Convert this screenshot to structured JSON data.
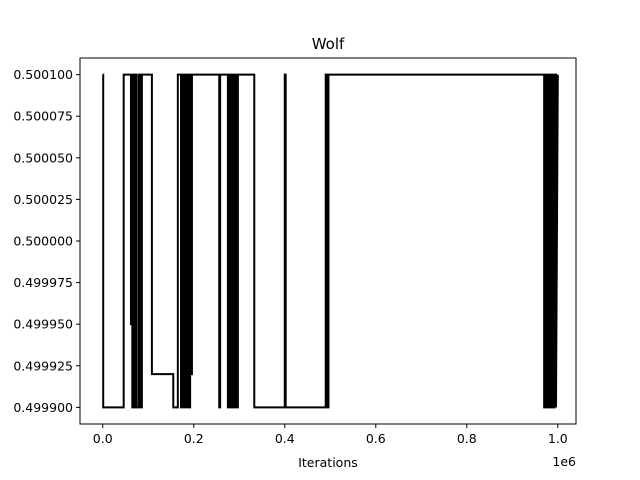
{
  "chart_data": {
    "type": "line",
    "title": "Wolf",
    "xlabel": "Iterations",
    "ylabel": "",
    "x_offset_label": "1e6",
    "xlim": [
      -0.05,
      1.04
    ],
    "ylim": [
      0.49989,
      0.50011
    ],
    "x_ticks": [
      0.0,
      0.2,
      0.4,
      0.6,
      0.8,
      1.0
    ],
    "x_tick_labels": [
      "0.0",
      "0.2",
      "0.4",
      "0.6",
      "0.8",
      "1.0"
    ],
    "y_ticks": [
      0.4999,
      0.499925,
      0.49995,
      0.499975,
      0.5,
      0.500025,
      0.50005,
      0.500075,
      0.5001
    ],
    "y_tick_labels": [
      "0.499900",
      "0.499925",
      "0.499950",
      "0.499975",
      "0.500000",
      "0.500025",
      "0.500050",
      "0.500075",
      "0.500100"
    ],
    "grid": false,
    "line_color": "#000000",
    "series": [
      {
        "x": [
          0.0,
          0.001,
          0.001,
          0.046,
          0.046,
          0.048,
          0.048,
          0.062,
          0.062,
          0.064,
          0.064,
          0.065,
          0.065,
          0.067,
          0.067,
          0.069,
          0.069,
          0.071,
          0.071,
          0.074,
          0.074,
          0.079,
          0.079,
          0.083,
          0.083,
          0.086,
          0.086,
          0.088,
          0.088,
          0.108,
          0.108,
          0.155,
          0.155,
          0.165,
          0.165,
          0.172,
          0.172,
          0.176,
          0.176,
          0.178,
          0.178,
          0.18,
          0.18,
          0.182,
          0.182,
          0.184,
          0.184,
          0.186,
          0.186,
          0.188,
          0.188,
          0.19,
          0.19,
          0.192,
          0.192,
          0.194,
          0.194,
          0.196,
          0.196,
          0.256,
          0.256,
          0.258,
          0.258,
          0.275,
          0.275,
          0.278,
          0.278,
          0.282,
          0.282,
          0.285,
          0.285,
          0.288,
          0.288,
          0.291,
          0.291,
          0.294,
          0.294,
          0.297,
          0.297,
          0.333,
          0.333,
          0.335,
          0.335,
          0.4,
          0.4,
          0.402,
          0.402,
          0.49,
          0.49,
          0.493,
          0.493,
          0.496,
          0.496,
          0.508,
          0.508,
          0.97,
          0.97,
          0.972,
          0.972,
          0.974,
          0.974,
          0.976,
          0.976,
          0.978,
          0.978,
          0.98,
          0.98,
          0.982,
          0.982,
          0.984,
          0.984,
          0.986,
          0.986,
          0.988,
          0.988,
          0.99,
          0.99,
          0.993,
          0.993,
          0.996,
          0.996,
          1.0
        ],
        "y": [
          0.5001,
          0.5001,
          0.4999,
          0.4999,
          0.5001,
          0.5001,
          0.5001,
          0.5001,
          0.49995,
          0.49995,
          0.5001,
          0.5001,
          0.4999,
          0.4999,
          0.5001,
          0.5001,
          0.4999,
          0.4999,
          0.5001,
          0.5001,
          0.4999,
          0.4999,
          0.5001,
          0.5001,
          0.4999,
          0.4999,
          0.5001,
          0.5001,
          0.5001,
          0.5001,
          0.49992,
          0.49992,
          0.4999,
          0.4999,
          0.5001,
          0.5001,
          0.4999,
          0.4999,
          0.5001,
          0.5001,
          0.4999,
          0.4999,
          0.5001,
          0.5001,
          0.4999,
          0.4999,
          0.5001,
          0.5001,
          0.4999,
          0.4999,
          0.5001,
          0.5001,
          0.4999,
          0.4999,
          0.5001,
          0.5001,
          0.49992,
          0.49992,
          0.5001,
          0.5001,
          0.4999,
          0.4999,
          0.5001,
          0.5001,
          0.4999,
          0.4999,
          0.5001,
          0.5001,
          0.4999,
          0.4999,
          0.5001,
          0.5001,
          0.4999,
          0.4999,
          0.5001,
          0.5001,
          0.4999,
          0.4999,
          0.5001,
          0.5001,
          0.4999,
          0.4999,
          0.4999,
          0.4999,
          0.5001,
          0.5001,
          0.4999,
          0.4999,
          0.5001,
          0.5001,
          0.4999,
          0.4999,
          0.5001,
          0.5001,
          0.5001,
          0.5001,
          0.4999,
          0.4999,
          0.5001,
          0.5001,
          0.4999,
          0.4999,
          0.5001,
          0.5001,
          0.4999,
          0.4999,
          0.5001,
          0.5001,
          0.4999,
          0.4999,
          0.5001,
          0.5001,
          0.4999,
          0.4999,
          0.5001,
          0.5001,
          0.4999,
          0.4999,
          0.5001,
          0.5001,
          0.4999,
          0.5001
        ]
      }
    ]
  }
}
